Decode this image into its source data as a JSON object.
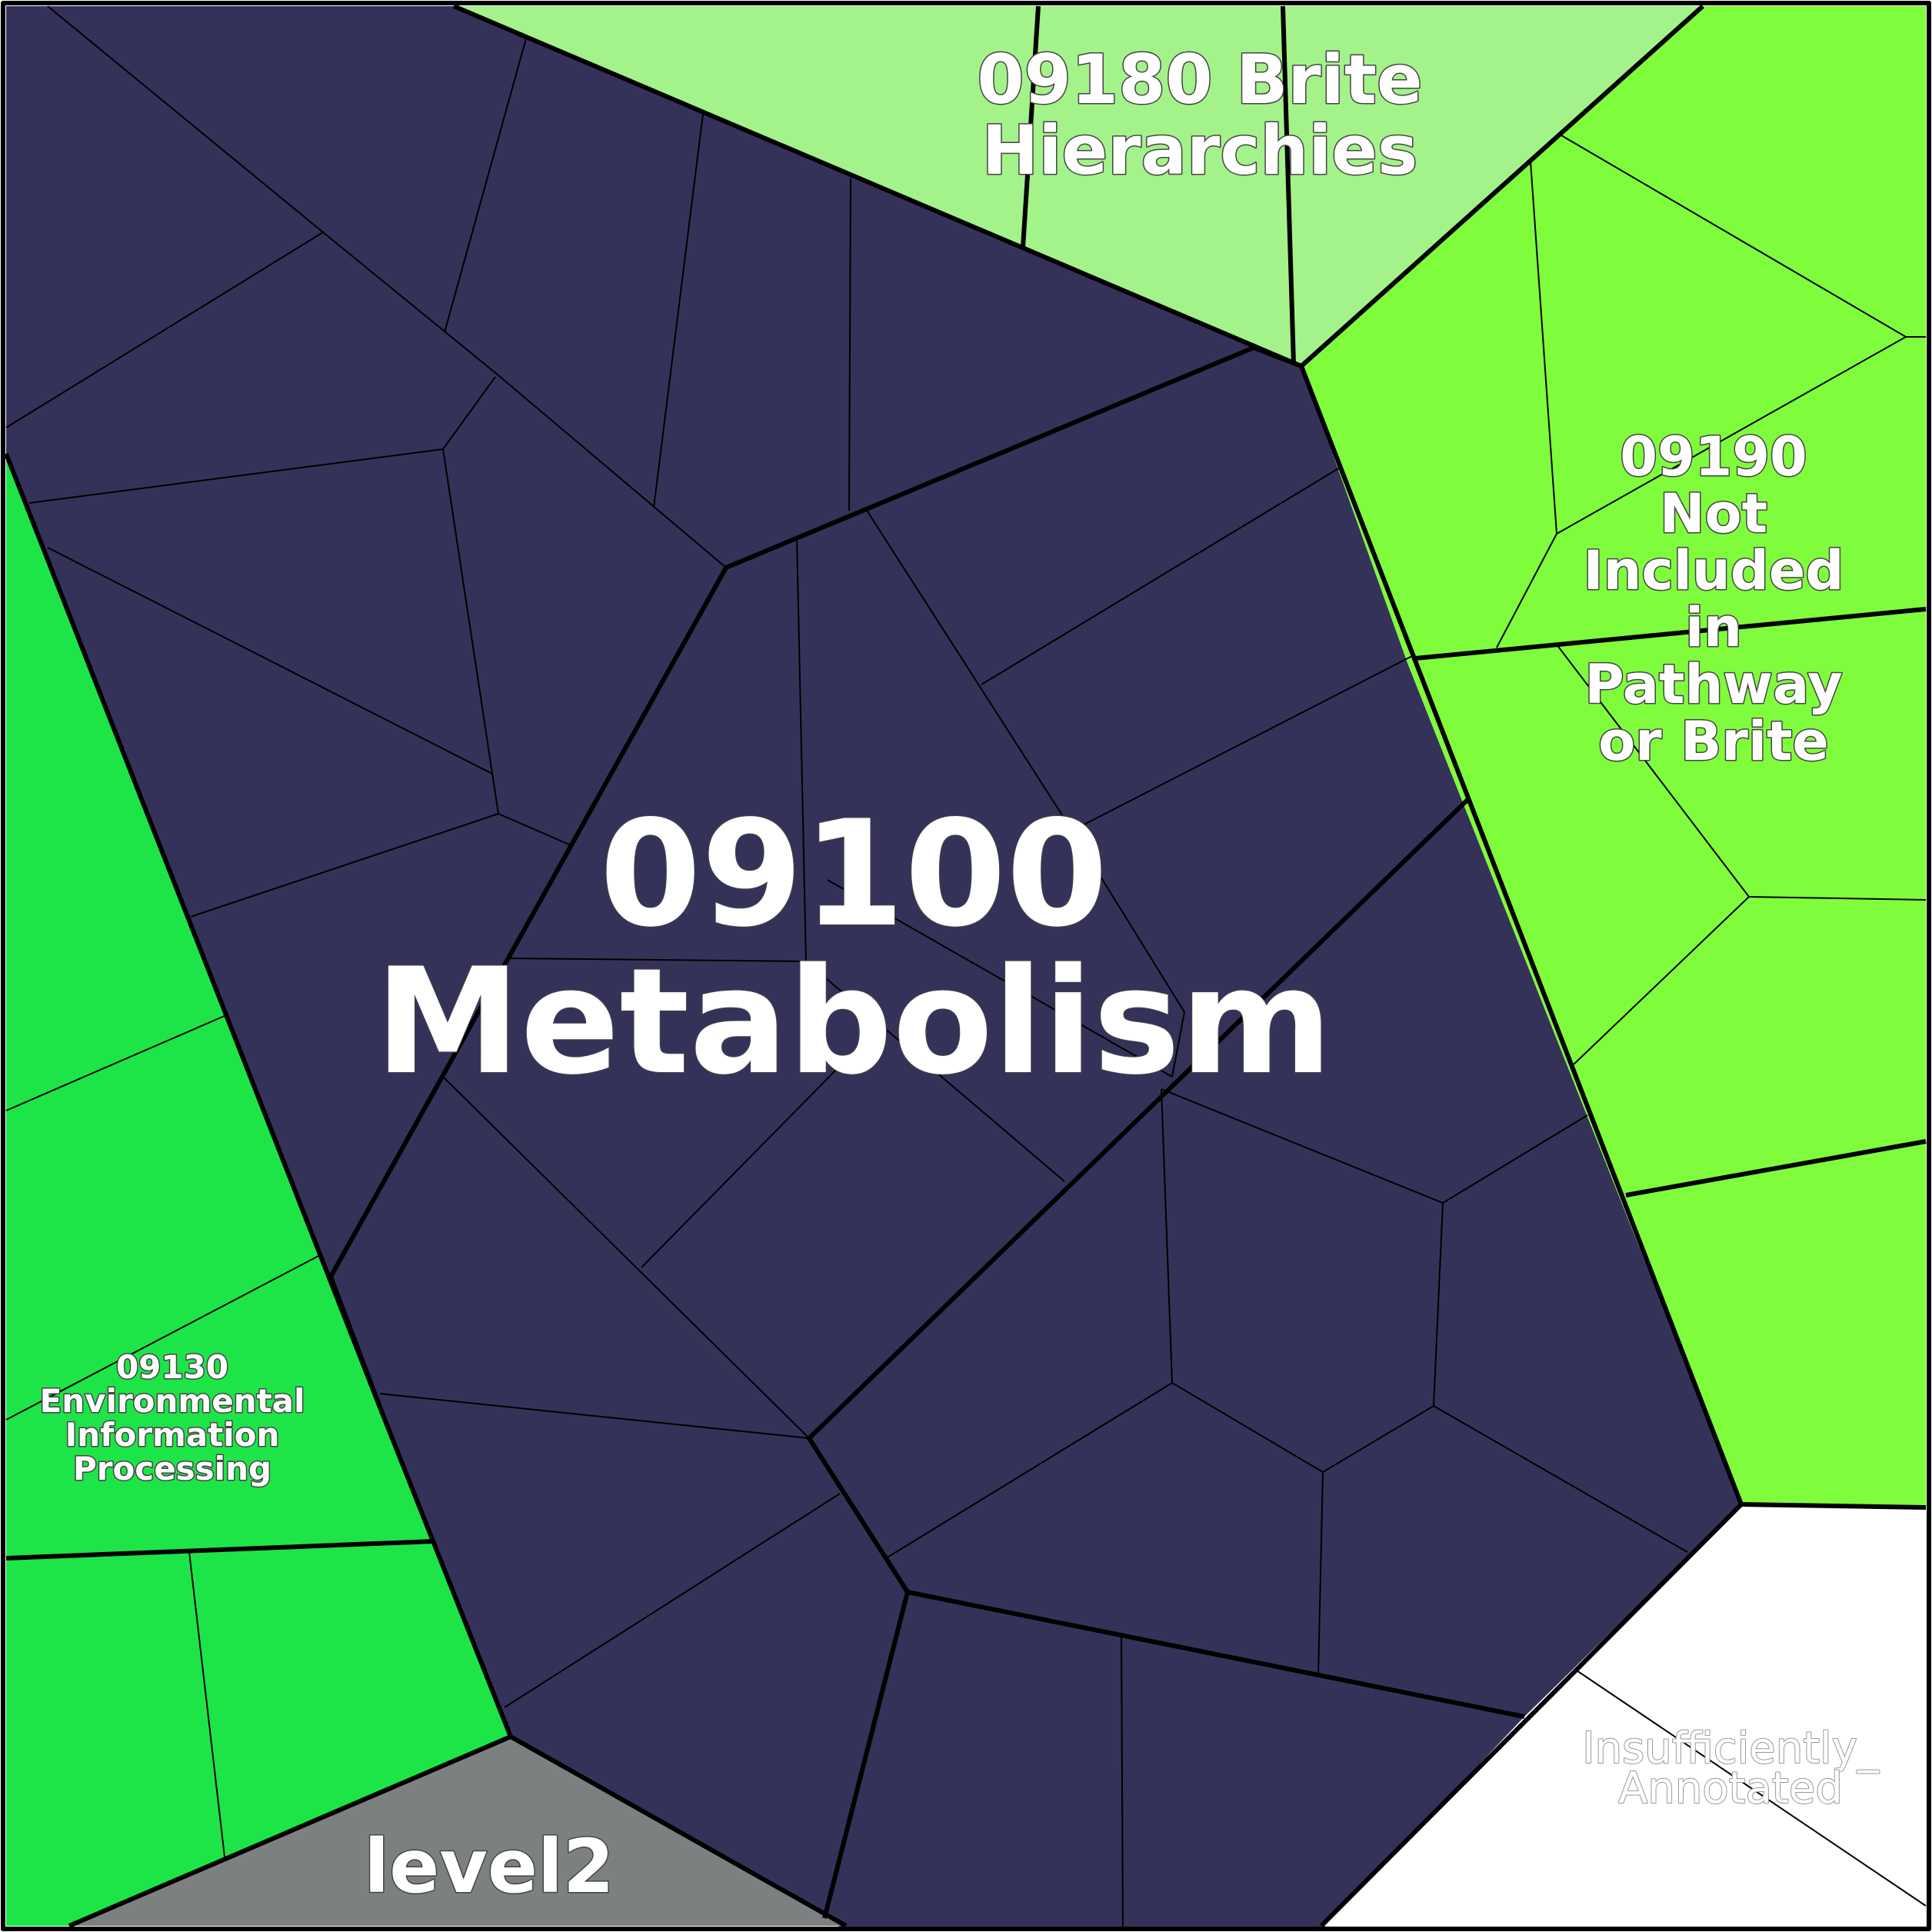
{
  "regions": [
    {
      "id": "metabolism",
      "label_lines": [
        "09100",
        "Metabolism"
      ],
      "color": "#35325a"
    },
    {
      "id": "brite",
      "label_lines": [
        "09180 Brite",
        "Hierarchies"
      ],
      "color": "#a3f28a"
    },
    {
      "id": "not-included",
      "label_lines": [
        "09190",
        "Not",
        "Included",
        "in",
        "Pathway",
        "or Brite"
      ],
      "color": "#7ffc3c"
    },
    {
      "id": "environmental",
      "label_lines": [
        "09130",
        "Environmental",
        "Information",
        "Processing"
      ],
      "color": "#1de548"
    },
    {
      "id": "level2",
      "label_lines": [
        "level2"
      ],
      "color": "#7c8081"
    },
    {
      "id": "insufficient",
      "label_lines": [
        "Insufficiently_",
        "Annotated"
      ],
      "color": "#ffffff"
    }
  ],
  "colors": {
    "border": "#000000",
    "label_text": "#ffffff",
    "faded_label_text": "#ffffff"
  }
}
